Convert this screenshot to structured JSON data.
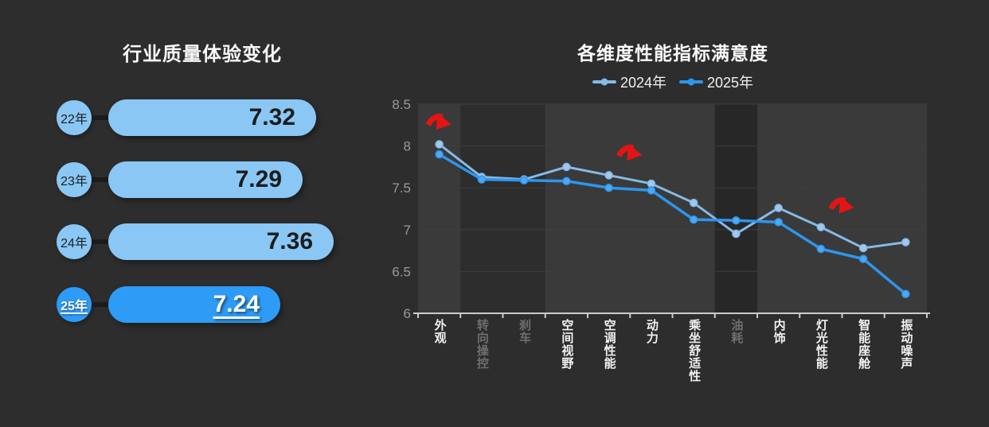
{
  "left_chart": {
    "title": "行业质量体验变化",
    "rows": [
      {
        "year": "22年",
        "value": "7.32",
        "highlight": false
      },
      {
        "year": "23年",
        "value": "7.29",
        "highlight": false
      },
      {
        "year": "24年",
        "value": "7.36",
        "highlight": false
      },
      {
        "year": "25年",
        "value": "7.24",
        "highlight": true
      }
    ]
  },
  "right_chart": {
    "title": "各维度性能指标满意度",
    "legend": [
      {
        "label": "2024年"
      },
      {
        "label": "2025年"
      }
    ]
  },
  "colors": {
    "background": "#2d2d2d",
    "bar_blue": "#8AC7F5",
    "bar_highlight_blue": "#2E9BF7",
    "series_2024": "#86BAE6",
    "series_2024_dot": "#9FC8ED",
    "series_2025": "#2D96EE",
    "series_2025_dot": "#51A7F3",
    "annotation_red": "#E51414",
    "band_highlight": "#3a3a3a",
    "band_dark": "#272727",
    "gridline": "#3e3e3e",
    "axis_line": "#cbcbcb",
    "tick_label": "#9a9a9a",
    "x_label_bright": "#f2f2f2",
    "x_label_dim": "#6f6f6f"
  },
  "chart_data": [
    {
      "type": "bar",
      "orientation": "horizontal",
      "title": "行业质量体验变化",
      "categories": [
        "22年",
        "23年",
        "24年",
        "25年"
      ],
      "values": [
        7.32,
        7.29,
        7.36,
        7.24
      ],
      "value_labels": [
        "7.32",
        "7.29",
        "7.36",
        "7.24"
      ],
      "highlighted_category": "25年"
    },
    {
      "type": "line",
      "title": "各维度性能指标满意度",
      "categories": [
        "外观",
        "转向操控",
        "刹车",
        "空间视野",
        "空调性能",
        "动力",
        "乘坐舒适性",
        "油耗",
        "内饰",
        "灯光性能",
        "智能座舱",
        "振动噪声"
      ],
      "series": [
        {
          "name": "2024年",
          "values": [
            8.02,
            7.63,
            7.6,
            7.75,
            7.65,
            7.55,
            7.32,
            6.95,
            7.26,
            7.03,
            6.78,
            6.85
          ]
        },
        {
          "name": "2025年",
          "values": [
            7.9,
            7.6,
            7.59,
            7.58,
            7.5,
            7.47,
            7.12,
            7.11,
            7.09,
            6.77,
            6.65,
            6.23
          ]
        }
      ],
      "ylim": [
        6,
        8.5
      ],
      "yticks": [
        "8.5",
        "8",
        "7.5",
        "7",
        "6.5",
        "6"
      ],
      "grid": true,
      "legend_position": "top",
      "dimmed_categories": [
        "转向操控",
        "刹车",
        "油耗"
      ],
      "highlighted_categories": [
        "外观",
        "空间视野",
        "空调性能",
        "动力",
        "乘坐舒适性",
        "内饰",
        "灯光性能",
        "智能座舱",
        "振动噪声"
      ],
      "darkest_band_categories": [
        "油耗"
      ],
      "annotations": [
        {
          "type": "down-arrow",
          "anchor_index": 0,
          "anchor_value": 8.27
        },
        {
          "type": "down-arrow",
          "anchor_index": 4.5,
          "anchor_value": 7.9
        },
        {
          "type": "down-arrow",
          "anchor_index": 9.5,
          "anchor_value": 7.27
        }
      ]
    }
  ]
}
